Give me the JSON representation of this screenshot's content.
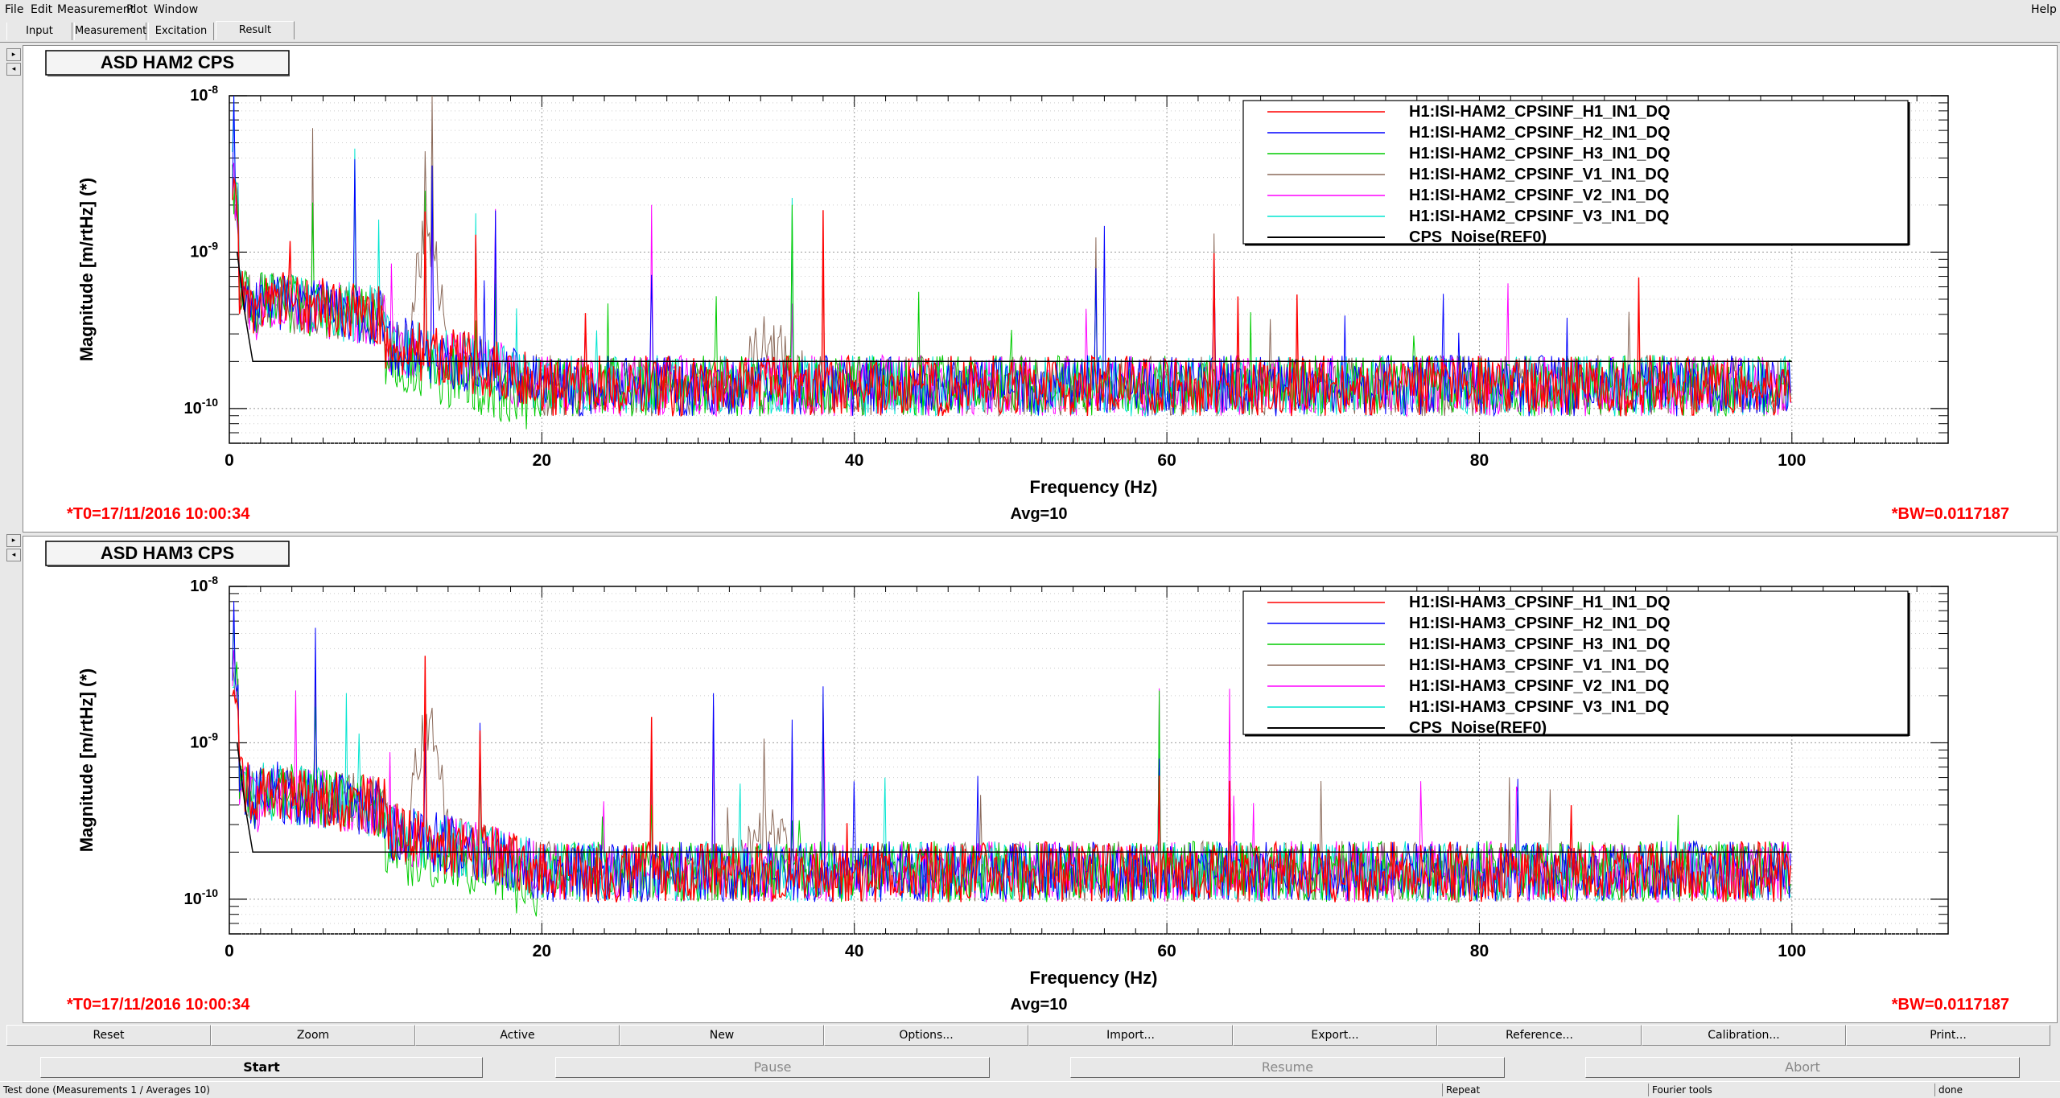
{
  "menu": {
    "file": "File",
    "edit": "Edit",
    "measurement": "Measurement",
    "plot": "Plot",
    "window": "Window",
    "help": "Help"
  },
  "tabs": [
    "Input",
    "Measurement",
    "Excitation",
    "Result"
  ],
  "active_tab": "Result",
  "panels": [
    {
      "title": "ASD HAM2 CPS",
      "t0": "*T0=17/11/2016 10:00:34",
      "avg": "Avg=10",
      "bw": "*BW=0.0117187",
      "legend": [
        "H1:ISI-HAM2_CPSINF_H1_IN1_DQ",
        "H1:ISI-HAM2_CPSINF_H2_IN1_DQ",
        "H1:ISI-HAM2_CPSINF_H3_IN1_DQ",
        "H1:ISI-HAM2_CPSINF_V1_IN1_DQ",
        "H1:ISI-HAM2_CPSINF_V2_IN1_DQ",
        "H1:ISI-HAM2_CPSINF_V3_IN1_DQ",
        "CPS_Noise(REF0)"
      ],
      "peak_seed": 7
    },
    {
      "title": "ASD HAM3 CPS",
      "t0": "*T0=17/11/2016 10:00:34",
      "avg": "Avg=10",
      "bw": "*BW=0.0117187",
      "legend": [
        "H1:ISI-HAM3_CPSINF_H1_IN1_DQ",
        "H1:ISI-HAM3_CPSINF_H2_IN1_DQ",
        "H1:ISI-HAM3_CPSINF_H3_IN1_DQ",
        "H1:ISI-HAM3_CPSINF_V1_IN1_DQ",
        "H1:ISI-HAM3_CPSINF_V2_IN1_DQ",
        "H1:ISI-HAM3_CPSINF_V3_IN1_DQ",
        "CPS_Noise(REF0)"
      ],
      "peak_seed": 13
    }
  ],
  "chart_data": [
    {
      "type": "line",
      "title": "ASD HAM2 CPS",
      "xlabel": "Frequency (Hz)",
      "ylabel": "Magnitude [m/rtHz] (*)",
      "xlim": [
        0,
        110
      ],
      "ylim": [
        6e-11,
        1e-08
      ],
      "yscale": "log",
      "x_ticks": [
        "0",
        "20",
        "40",
        "60",
        "80",
        "100"
      ],
      "grid": true,
      "legend_position": "top-right",
      "series_colors": [
        "#ff0000",
        "#0000ff",
        "#00cc00",
        "#8b6a5a",
        "#ff00ff",
        "#00e5d0",
        "#000000"
      ],
      "reference": {
        "name": "CPS_Noise(REF0)",
        "x": [
          0.5,
          1,
          1.5,
          10,
          100
        ],
        "y": [
          1e-09,
          4e-10,
          2e-10,
          2e-10,
          2e-10
        ]
      },
      "noise_floor": 1.4e-10,
      "peaks_hz": [
        0.3,
        5.3,
        8,
        12.5,
        13,
        15.8,
        17,
        27,
        36,
        38,
        55.5,
        56,
        63
      ]
    },
    {
      "type": "line",
      "title": "ASD HAM3 CPS",
      "xlabel": "Frequency (Hz)",
      "ylabel": "Magnitude [m/rtHz] (*)",
      "xlim": [
        0,
        110
      ],
      "ylim": [
        6e-11,
        1e-08
      ],
      "yscale": "log",
      "x_ticks": [
        "0",
        "20",
        "40",
        "60",
        "80",
        "100"
      ],
      "grid": true,
      "legend_position": "top-right",
      "series_colors": [
        "#ff0000",
        "#0000ff",
        "#00cc00",
        "#8b6a5a",
        "#ff00ff",
        "#00e5d0",
        "#000000"
      ],
      "reference": {
        "name": "CPS_Noise(REF0)",
        "x": [
          0.5,
          1,
          1.5,
          10,
          100
        ],
        "y": [
          1e-09,
          4e-10,
          2e-10,
          2e-10,
          2e-10
        ]
      },
      "noise_floor": 1.5e-10,
      "peaks_hz": [
        0.3,
        5.5,
        12.5,
        16,
        24,
        27,
        31,
        36,
        38,
        59.5,
        64
      ]
    }
  ],
  "toolbar": [
    "Reset",
    "Zoom",
    "Active",
    "New",
    "Options...",
    "Import...",
    "Export...",
    "Reference...",
    "Calibration...",
    "Print..."
  ],
  "controls": {
    "start": "Start",
    "pause": "Pause",
    "resume": "Resume",
    "abort": "Abort"
  },
  "status": {
    "message": "Test done (Measurements 1 / Averages 10)",
    "repeat": "Repeat",
    "fourier": "Fourier tools",
    "done": "done"
  }
}
